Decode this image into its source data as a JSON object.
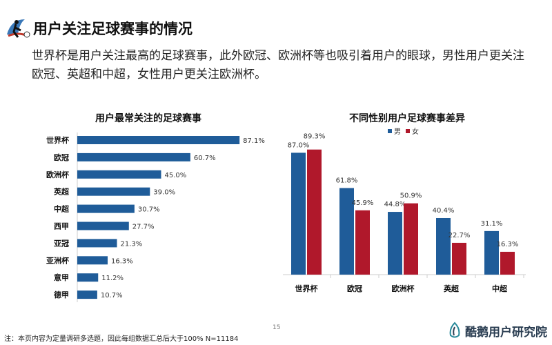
{
  "header": {
    "title": "用户关注足球赛事的情况",
    "subtitle": "世界杯是用户关注最高的足球赛事，此外欧冠、欧洲杯等也吸引着用户的眼球，男性用户更关注欧冠、英超和中超，女性用户更关注欧洲杯。"
  },
  "footer": {
    "note": "注：本页内容为定量调研多选题，因此每组数据汇总后大于100%  N=11184",
    "page_number": "15",
    "brand": "酷鹅用户研究院"
  },
  "colors": {
    "male": "#1f5c99",
    "female": "#b0182b",
    "bar": "#1f5c99"
  },
  "chart_data": [
    {
      "type": "bar",
      "orientation": "horizontal",
      "title": "用户最常关注的足球赛事",
      "categories": [
        "世界杯",
        "欧冠",
        "欧洲杯",
        "英超",
        "中超",
        "西甲",
        "亚冠",
        "亚洲杯",
        "意甲",
        "德甲"
      ],
      "values": [
        87.1,
        60.7,
        45.0,
        39.0,
        30.7,
        27.7,
        21.3,
        16.3,
        11.2,
        10.7
      ],
      "labels": [
        "87.1%",
        "60.7%",
        "45.0%",
        "39.0%",
        "30.7%",
        "27.7%",
        "21.3%",
        "16.3%",
        "11.2%",
        "10.7%"
      ],
      "xlim": [
        0,
        100
      ]
    },
    {
      "type": "bar",
      "title": "不同性别用户足球赛事差异",
      "categories": [
        "世界杯",
        "欧冠",
        "欧洲杯",
        "英超",
        "中超"
      ],
      "legend": "top",
      "series": [
        {
          "name": "男",
          "values": [
            87.0,
            61.8,
            44.8,
            40.4,
            31.1
          ],
          "labels": [
            "87.0%",
            "61.8%",
            "44.8%",
            "40.4%",
            "31.1%"
          ]
        },
        {
          "name": "女",
          "values": [
            89.3,
            45.9,
            50.9,
            22.7,
            16.3
          ],
          "labels": [
            "89.3%",
            "45.9%",
            "50.9%",
            "22.7%",
            "16.3%"
          ]
        }
      ],
      "ylim": [
        0,
        100
      ]
    }
  ]
}
